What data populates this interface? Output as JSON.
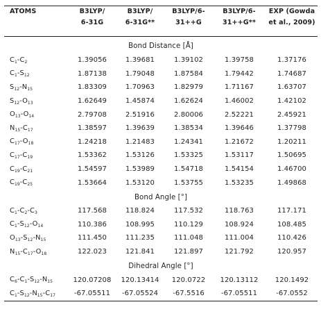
{
  "header": {
    "atoms": "ATOMS",
    "col1": [
      "B3LYP/",
      "6-31G"
    ],
    "col2": [
      "B3LYP/",
      "6-31G**"
    ],
    "col3": [
      "B3LYP/6-",
      "31++G"
    ],
    "col4": [
      "B3LYP/6-",
      "31++G**"
    ],
    "col5": [
      "EXP (Gowda",
      "et al., 2009)"
    ]
  },
  "sections": [
    {
      "title": "Bond Distance [Å]",
      "rows": [
        {
          "atom": [
            "C",
            "1",
            "-C",
            "2"
          ],
          "v": [
            "1.39056",
            "1.39681",
            "1.39102",
            "1.39758",
            "1.37176"
          ]
        },
        {
          "atom": [
            "C",
            "1",
            "-S",
            "12"
          ],
          "v": [
            "1.87138",
            "1.79048",
            "1.87584",
            "1.79442",
            "1.74687"
          ]
        },
        {
          "atom": [
            "S",
            "12",
            "-N",
            "15"
          ],
          "v": [
            "1.83309",
            "1.70963",
            "1.82979",
            "1.71167",
            "1.63707"
          ]
        },
        {
          "atom": [
            "S",
            "12",
            "-O",
            "13"
          ],
          "v": [
            "1.62649",
            "1.45874",
            "1.62624",
            "1.46002",
            "1.42102"
          ]
        },
        {
          "atom": [
            "O",
            "13",
            "-O",
            "14"
          ],
          "v": [
            "2.79708",
            "2.51916",
            "2.80006",
            "2.52221",
            "2.45921"
          ]
        },
        {
          "atom": [
            "N",
            "15",
            "-C",
            "17"
          ],
          "v": [
            "1.38597",
            "1.39639",
            "1.38534",
            "1.39646",
            "1.37798"
          ]
        },
        {
          "atom": [
            "C",
            "17",
            "-O",
            "18"
          ],
          "v": [
            "1.24218",
            "1.21483",
            "1.24341",
            "1.21672",
            "1.20211"
          ]
        },
        {
          "atom": [
            "C",
            "17",
            "-C",
            "19"
          ],
          "v": [
            "1.53362",
            "1.53126",
            "1.53325",
            "1.53117",
            "1.50695"
          ]
        },
        {
          "atom": [
            "C",
            "19",
            "-C",
            "21"
          ],
          "v": [
            "1.54597",
            "1.53989",
            "1.54718",
            "1.54154",
            "1.46700"
          ]
        },
        {
          "atom": [
            "C",
            "19",
            "-C",
            "25"
          ],
          "v": [
            "1.53664",
            "1.53120",
            "1.53755",
            "1.53235",
            "1.49868"
          ]
        }
      ]
    },
    {
      "title": "Bond Angle [°]",
      "rows": [
        {
          "atom": [
            "C",
            "1",
            "-C",
            "2",
            "-C",
            "3"
          ],
          "v": [
            "117.568",
            "118.824",
            "117.532",
            "118.763",
            "117.171"
          ]
        },
        {
          "atom": [
            "C",
            "1",
            "-S",
            "12",
            "-O",
            "14"
          ],
          "v": [
            "110.386",
            "108.995",
            "110.129",
            "108.924",
            "108.485"
          ]
        },
        {
          "atom": [
            "O",
            "13",
            "-S",
            "12",
            "-N",
            "15"
          ],
          "v": [
            "111.450",
            "111.235",
            "111.048",
            "111.004",
            "110.426"
          ]
        },
        {
          "atom": [
            "N",
            "15",
            "-C",
            "17",
            "-O",
            "18"
          ],
          "v": [
            "122.023",
            "121.841",
            "121.897",
            "121.792",
            "120.957"
          ]
        }
      ]
    },
    {
      "title": "Dihedral Angle [°]",
      "rows": [
        {
          "atom": [
            "C",
            "6",
            "-C",
            "1",
            "-S",
            "12",
            "-N",
            "15"
          ],
          "v": [
            "120.07208",
            "120.13414",
            "120.0722",
            "120.13112",
            "120.1492"
          ]
        },
        {
          "atom": [
            "C",
            "1",
            "-S",
            "12",
            "-N",
            "15",
            "-C",
            "17"
          ],
          "v": [
            "-67.05511",
            "-67.05524",
            "-67.5516",
            "-67.05511",
            "-67.0552"
          ]
        }
      ]
    }
  ]
}
